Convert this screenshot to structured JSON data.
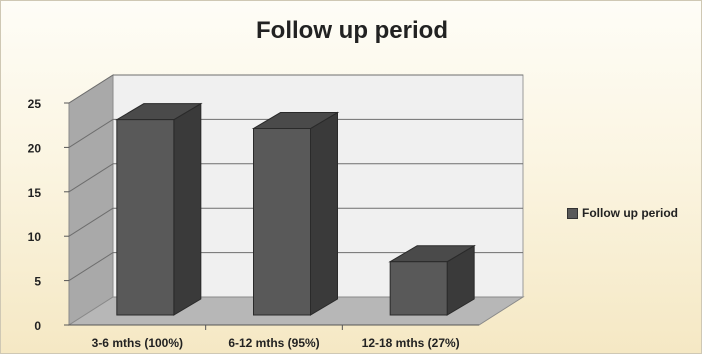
{
  "chart_data": {
    "type": "bar",
    "title": "Follow up period",
    "categories": [
      "3-6 mths (100%)",
      "6-12 mths (95%)",
      "12-18 mths (27%)"
    ],
    "series": [
      {
        "name": "Follow up period",
        "values": [
          22,
          21,
          6
        ]
      }
    ],
    "ylim": [
      0,
      25
    ],
    "yticks": [
      0,
      5,
      10,
      15,
      20,
      25
    ],
    "xlabel": "",
    "ylabel": "",
    "grid": true,
    "three_d": true,
    "legend_position": "right",
    "colors": {
      "bar_front": "#595959",
      "bar_side": "#3a3a3a",
      "bar_top": "#4a4a4a",
      "wall_back": "#f0f0f0",
      "wall_side": "#a9a9a9",
      "floor": "#b7b7b7",
      "gridline": "#6e6e6e"
    }
  }
}
